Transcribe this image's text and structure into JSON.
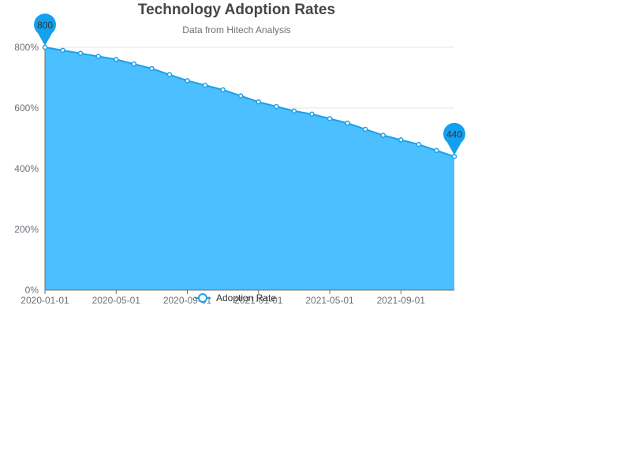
{
  "chart_data": {
    "type": "area",
    "title": "Technology Adoption Rates",
    "subtitle": "Data from Hitech Analysis",
    "x": [
      "2020-01-01",
      "2020-02-01",
      "2020-03-01",
      "2020-04-01",
      "2020-05-01",
      "2020-06-01",
      "2020-07-01",
      "2020-08-01",
      "2020-09-01",
      "2020-10-01",
      "2020-11-01",
      "2020-12-01",
      "2021-01-01",
      "2021-02-01",
      "2021-03-01",
      "2021-04-01",
      "2021-05-01",
      "2021-06-01",
      "2021-07-01",
      "2021-08-01",
      "2021-09-01",
      "2021-10-01",
      "2021-11-01",
      "2021-12-01"
    ],
    "x_tick_labels": [
      "2020-01-01",
      "2020-05-01",
      "2020-09-01",
      "2021-01-01",
      "2021-05-01",
      "2021-09-01"
    ],
    "series": [
      {
        "name": "Adoption Rate",
        "values": [
          800,
          790,
          780,
          770,
          760,
          745,
          730,
          710,
          690,
          675,
          660,
          640,
          620,
          605,
          590,
          580,
          565,
          550,
          530,
          510,
          495,
          480,
          460,
          440
        ]
      }
    ],
    "ylim": [
      0,
      800
    ],
    "y_ticks": [
      0,
      200,
      400,
      600,
      800
    ],
    "y_tick_suffix": "%",
    "markers": [
      {
        "label": "800",
        "index": 0
      },
      {
        "label": "440",
        "index": 23
      }
    ],
    "colors": {
      "line": "#1ba0e8",
      "area": "#4bbfff",
      "pin": "#13a0ef",
      "grid": "#e6e6e6",
      "axis": "#6e7079"
    },
    "grid": true,
    "legend_position": "bottom-center"
  }
}
